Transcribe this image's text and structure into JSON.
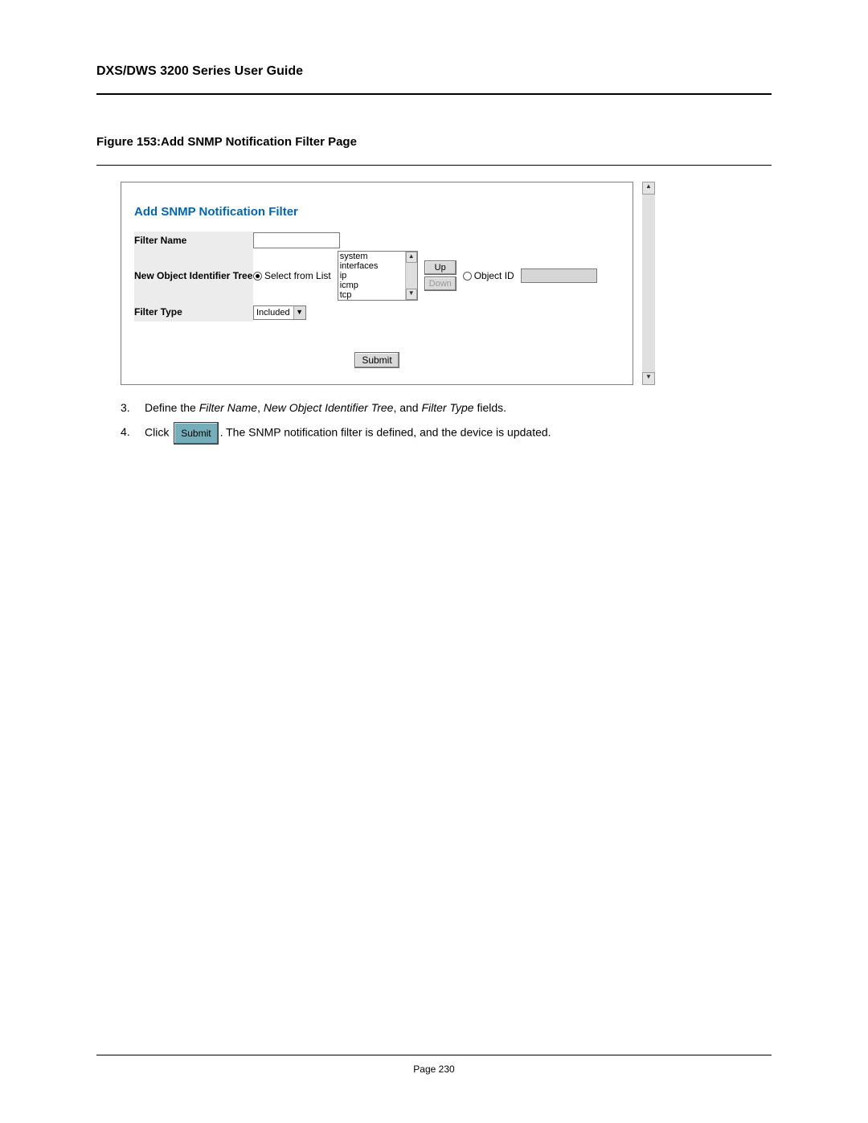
{
  "header": {
    "title": "DXS/DWS 3200 Series User Guide"
  },
  "figure": {
    "caption": "Figure 153:Add SNMP Notification Filter Page"
  },
  "panel": {
    "title": "Add SNMP Notification Filter",
    "rows": {
      "filter_name": {
        "label": "Filter Name",
        "value": ""
      },
      "oid_tree": {
        "label": "New Object Identifier Tree",
        "select_from_list_label": "Select from List",
        "object_id_label": "Object ID",
        "list_items": [
          "system",
          "interfaces",
          "ip",
          "icmp",
          "tcp"
        ],
        "up_label": "Up",
        "down_label": "Down"
      },
      "filter_type": {
        "label": "Filter Type",
        "selected": "Included"
      }
    },
    "submit_label": "Submit"
  },
  "steps": [
    {
      "num": "3.",
      "prefix": "Define the ",
      "f1": "Filter Name",
      "sep1": ", ",
      "f2": "New Object Identifier Tree",
      "sep2": ", and ",
      "f3": "Filter Type",
      "suffix": " fields."
    },
    {
      "num": "4.",
      "prefix": "Click ",
      "button": "Submit",
      "suffix": ". The SNMP notification filter is defined, and the device is updated."
    }
  ],
  "footer": {
    "text": "Page 230"
  },
  "colors": {
    "panel_title": "#0066b3",
    "row_bg": "#ececec",
    "button_bg": "#d9d9d9",
    "inline_submit_bg": "#75aebb"
  }
}
